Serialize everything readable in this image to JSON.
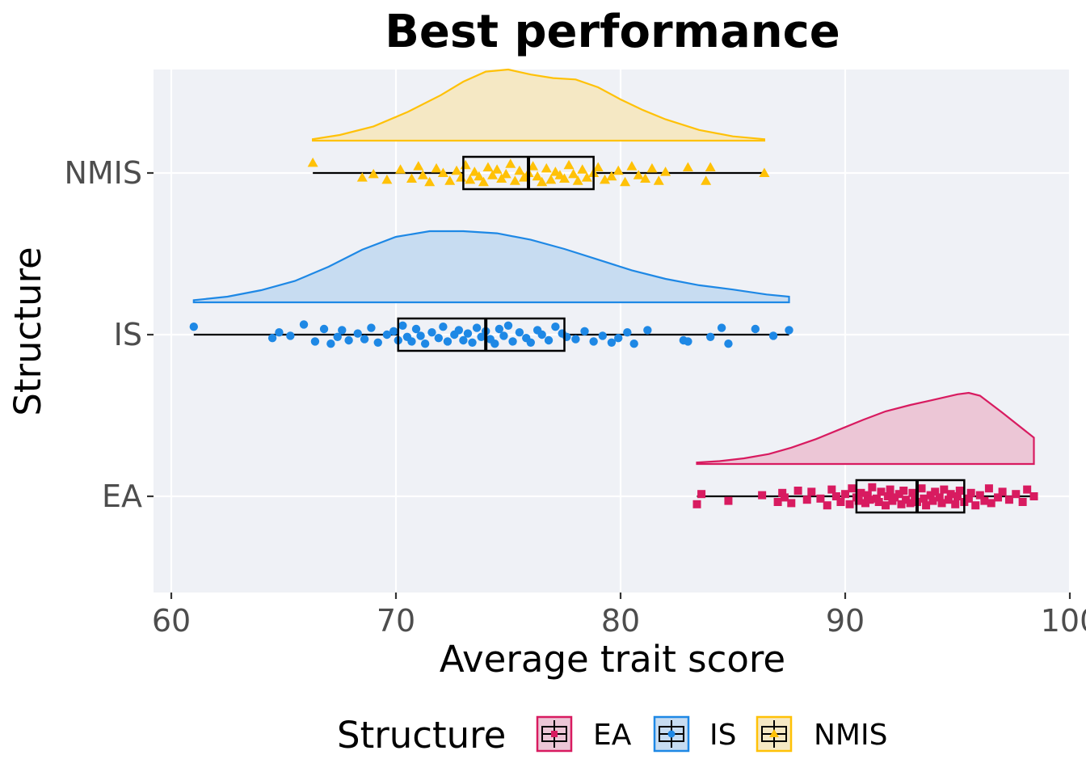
{
  "chart_data": {
    "type": "raincloud",
    "title": "Best performance",
    "xlabel": "Average trait score",
    "ylabel": "Structure",
    "xlim": [
      59.2,
      100
    ],
    "x_ticks": [
      60,
      70,
      80,
      90,
      100
    ],
    "x_tick_labels": [
      "60",
      "70",
      "80",
      "90",
      "100"
    ],
    "grid": true,
    "legend": {
      "title": "Structure",
      "position": "bottom"
    },
    "groups": [
      {
        "name": "EA",
        "color": "#d81b60",
        "fill": "#ecc6d6",
        "shape": "square",
        "box": {
          "min": 83.4,
          "q1": 90.5,
          "median": 93.2,
          "q3": 95.3,
          "max": 98.4
        },
        "density_x": [
          83.4,
          84.4,
          85.5,
          86.6,
          87.6,
          88.7,
          89.7,
          90.8,
          91.8,
          92.9,
          93.9,
          95.0,
          95.5,
          96.0,
          97.0,
          98.4
        ],
        "density_y": [
          0.02,
          0.04,
          0.08,
          0.14,
          0.23,
          0.35,
          0.48,
          0.62,
          0.74,
          0.83,
          0.9,
          0.98,
          1.0,
          0.96,
          0.72,
          0.37
        ],
        "points": [
          83.4,
          83.6,
          84.8,
          86.3,
          87.0,
          87.2,
          87.3,
          87.6,
          87.9,
          88.3,
          88.5,
          88.9,
          89.2,
          89.4,
          89.6,
          89.8,
          90.0,
          90.2,
          90.3,
          90.5,
          90.6,
          90.7,
          90.9,
          91.0,
          91.1,
          91.2,
          91.4,
          91.5,
          91.6,
          91.8,
          91.9,
          92.0,
          92.1,
          92.2,
          92.4,
          92.5,
          92.6,
          92.7,
          92.9,
          93.0,
          93.1,
          93.2,
          93.4,
          93.5,
          93.6,
          93.8,
          93.9,
          94.0,
          94.2,
          94.3,
          94.4,
          94.6,
          94.7,
          94.9,
          95.0,
          95.1,
          95.3,
          95.5,
          95.6,
          95.8,
          96.0,
          96.2,
          96.4,
          96.5,
          96.8,
          97.0,
          97.3,
          97.6,
          97.9,
          98.1,
          98.4
        ],
        "jitter": [
          0.7,
          -0.2,
          0.4,
          -0.1,
          0.5,
          -0.3,
          0.1,
          0.6,
          -0.5,
          0.3,
          -0.4,
          0.2,
          0.8,
          -0.6,
          0.0,
          0.5,
          -0.2,
          0.7,
          -0.7,
          0.1,
          0.4,
          -0.3,
          0.6,
          -0.1,
          0.3,
          -0.8,
          0.2,
          0.5,
          -0.4,
          0.8,
          0.0,
          -0.6,
          0.4,
          0.1,
          -0.2,
          0.7,
          -0.5,
          0.3,
          0.6,
          -0.3,
          0.0,
          0.5,
          -0.7,
          0.2,
          0.8,
          -0.1,
          0.4,
          -0.4,
          0.1,
          0.6,
          -0.6,
          0.3,
          -0.2,
          0.7,
          0.0,
          -0.5,
          0.5,
          0.2,
          -0.3,
          0.8,
          -0.1,
          0.4,
          -0.7,
          0.6,
          0.1,
          -0.4,
          0.3,
          -0.2,
          0.5,
          -0.6,
          0.0
        ]
      },
      {
        "name": "IS",
        "color": "#1e88e5",
        "fill": "#c7dcf1",
        "shape": "circle",
        "box": {
          "min": 61.0,
          "q1": 70.1,
          "median": 74.0,
          "q3": 77.5,
          "max": 87.5
        },
        "density_x": [
          61.0,
          62.5,
          64.0,
          65.5,
          67.0,
          68.5,
          70.0,
          71.5,
          73.0,
          74.5,
          76.0,
          77.5,
          79.0,
          80.5,
          82.0,
          83.5,
          85.0,
          86.5,
          87.5
        ],
        "density_y": [
          0.03,
          0.08,
          0.17,
          0.3,
          0.5,
          0.74,
          0.92,
          1.0,
          1.0,
          0.97,
          0.88,
          0.75,
          0.6,
          0.45,
          0.33,
          0.24,
          0.18,
          0.11,
          0.08
        ],
        "points": [
          61.0,
          64.5,
          64.8,
          65.3,
          65.9,
          66.4,
          66.8,
          67.1,
          67.4,
          67.6,
          67.9,
          68.3,
          68.6,
          68.9,
          69.2,
          69.6,
          69.9,
          70.1,
          70.3,
          70.5,
          70.7,
          70.9,
          71.1,
          71.3,
          71.6,
          71.9,
          72.1,
          72.3,
          72.6,
          72.8,
          73.0,
          73.2,
          73.4,
          73.6,
          73.8,
          74.0,
          74.2,
          74.4,
          74.6,
          74.8,
          75.0,
          75.2,
          75.5,
          75.8,
          76.0,
          76.3,
          76.5,
          76.8,
          77.1,
          77.4,
          77.6,
          78.0,
          78.4,
          78.8,
          79.2,
          79.6,
          79.9,
          80.3,
          80.6,
          81.2,
          82.8,
          83.0,
          84.0,
          84.5,
          84.8,
          86.0,
          86.8,
          87.5
        ],
        "jitter": [
          -0.7,
          0.3,
          -0.2,
          0.1,
          -0.9,
          0.6,
          -0.5,
          0.8,
          0.2,
          -0.4,
          0.5,
          -0.1,
          0.4,
          -0.6,
          0.7,
          0.0,
          -0.3,
          0.5,
          -0.8,
          0.2,
          0.6,
          -0.5,
          0.1,
          0.8,
          -0.2,
          0.3,
          -0.7,
          0.6,
          0.0,
          -0.4,
          0.5,
          -0.1,
          0.7,
          -0.6,
          0.2,
          -0.3,
          0.4,
          0.8,
          -0.5,
          0.1,
          -0.8,
          0.6,
          -0.2,
          0.3,
          0.7,
          -0.4,
          0.0,
          0.5,
          -0.7,
          -0.1,
          0.2,
          0.4,
          -0.3,
          0.6,
          0.1,
          0.7,
          0.3,
          -0.2,
          0.8,
          -0.4,
          0.5,
          0.6,
          0.2,
          -0.6,
          0.8,
          -0.5,
          0.1,
          -0.4
        ],
        "outlier_jitter": [
          -0.7
        ]
      },
      {
        "name": "NMIS",
        "color": "#ffc107",
        "fill": "#f5e8c4",
        "shape": "triangle",
        "box": {
          "min": 66.3,
          "q1": 73.0,
          "median": 75.9,
          "q3": 78.8,
          "max": 86.4
        },
        "density_x": [
          66.3,
          67.5,
          69.0,
          70.5,
          72.0,
          73.0,
          74.0,
          75.0,
          76.0,
          77.0,
          78.0,
          79.0,
          80.0,
          81.0,
          82.0,
          83.5,
          85.0,
          86.4
        ],
        "density_y": [
          0.02,
          0.08,
          0.2,
          0.4,
          0.64,
          0.83,
          0.97,
          1.0,
          0.93,
          0.88,
          0.86,
          0.75,
          0.58,
          0.43,
          0.3,
          0.15,
          0.06,
          0.02
        ],
        "points": [
          66.3,
          68.5,
          69.0,
          69.6,
          70.2,
          70.7,
          71.0,
          71.2,
          71.5,
          71.8,
          72.1,
          72.4,
          72.7,
          72.9,
          73.1,
          73.3,
          73.5,
          73.7,
          73.9,
          74.1,
          74.3,
          74.5,
          74.7,
          74.9,
          75.1,
          75.3,
          75.5,
          75.7,
          75.9,
          76.1,
          76.3,
          76.5,
          76.7,
          76.9,
          77.1,
          77.3,
          77.5,
          77.7,
          77.9,
          78.1,
          78.3,
          78.5,
          78.8,
          79.0,
          79.3,
          79.6,
          79.9,
          80.2,
          80.5,
          80.8,
          81.1,
          81.4,
          81.7,
          82.0,
          83.0,
          83.8,
          84.0,
          86.4
        ],
        "jitter": [
          -0.9,
          0.4,
          0.1,
          0.6,
          -0.3,
          0.5,
          -0.6,
          0.2,
          0.8,
          -0.4,
          0.0,
          0.7,
          -0.2,
          0.4,
          -0.7,
          0.6,
          -0.1,
          0.3,
          0.8,
          -0.5,
          0.2,
          -0.3,
          0.5,
          0.1,
          -0.8,
          0.7,
          -0.2,
          0.4,
          0.0,
          -0.6,
          0.3,
          0.8,
          -0.4,
          0.6,
          -0.1,
          0.2,
          0.5,
          -0.7,
          0.1,
          0.7,
          -0.3,
          0.4,
          0.0,
          -0.5,
          0.6,
          0.3,
          -0.2,
          0.8,
          -0.6,
          0.2,
          0.5,
          -0.4,
          0.7,
          -0.1,
          -0.5,
          0.7,
          -0.5,
          0.0
        ]
      }
    ]
  }
}
